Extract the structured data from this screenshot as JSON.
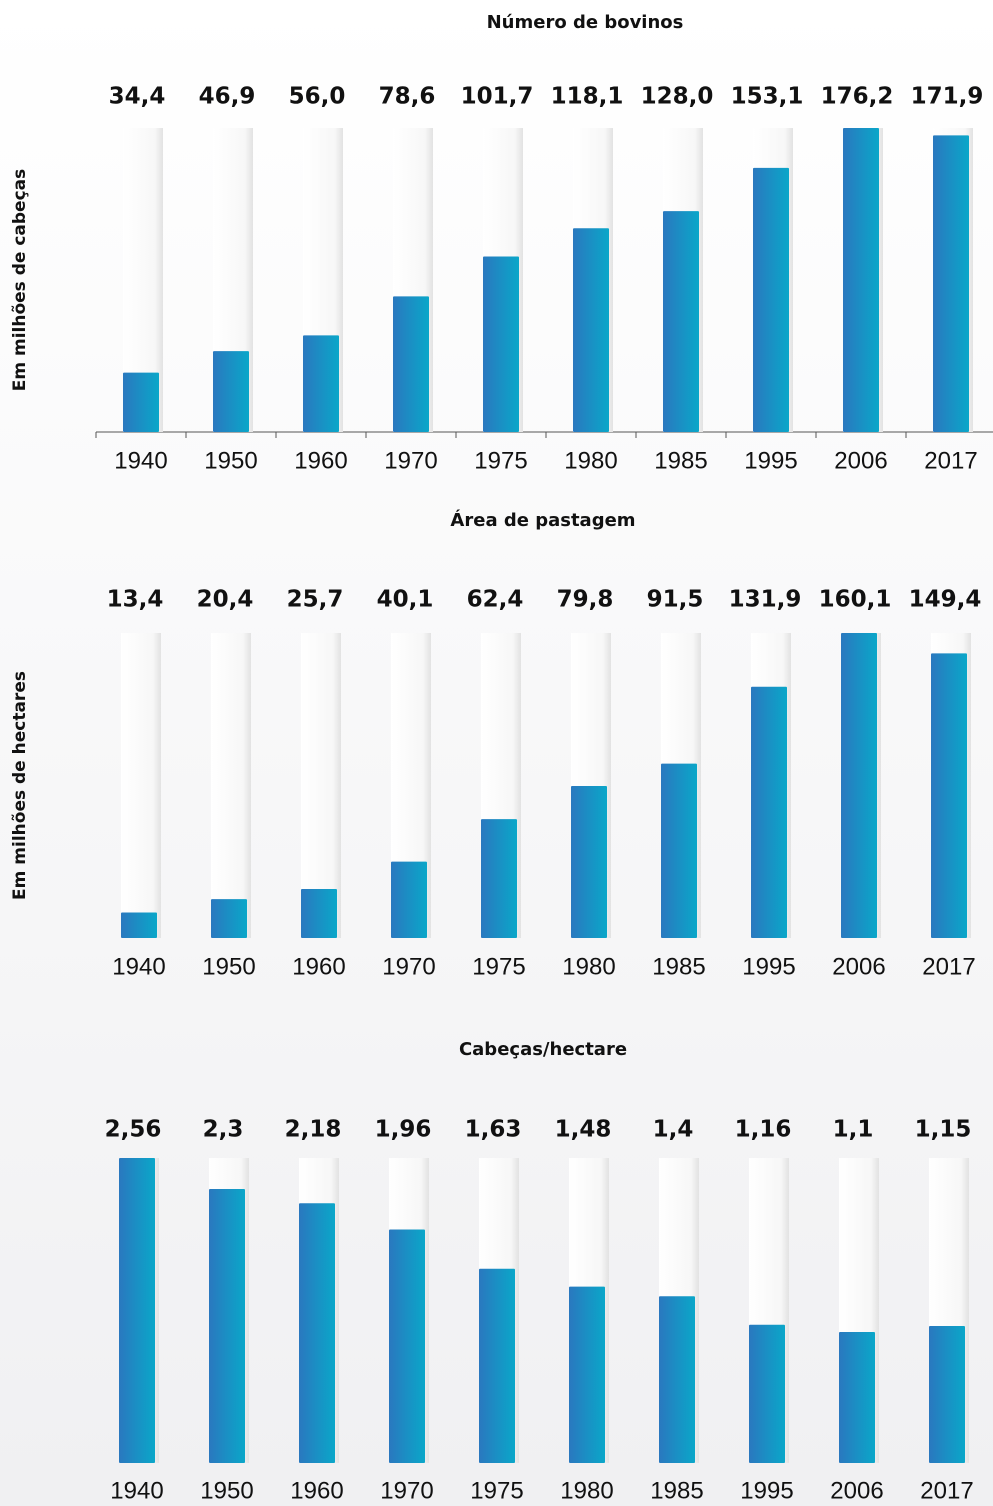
{
  "chart_data": [
    {
      "type": "bar",
      "title": "Número de bovinos",
      "y_label": "Em milhões de cabeças",
      "categories": [
        "1940",
        "1950",
        "1960",
        "1970",
        "1975",
        "1980",
        "1985",
        "1995",
        "2006",
        "2017"
      ],
      "values": [
        34.4,
        46.9,
        56.0,
        78.6,
        101.7,
        118.1,
        128.0,
        153.1,
        176.2,
        171.9
      ],
      "value_labels": [
        "34,4",
        "46,9",
        "56,0",
        "78,6",
        "101,7",
        "118,1",
        "128,0",
        "153,1",
        "176,2",
        "171,9"
      ],
      "color": "#1f86c4",
      "axis_line": true
    },
    {
      "type": "bar",
      "title": "Área de pastagem",
      "y_label": "Em milhões de hectares",
      "categories": [
        "1940",
        "1950",
        "1960",
        "1970",
        "1975",
        "1980",
        "1985",
        "1995",
        "2006",
        "2017"
      ],
      "values": [
        13.4,
        20.4,
        25.7,
        40.1,
        62.4,
        79.8,
        91.5,
        131.9,
        160.1,
        149.4
      ],
      "value_labels": [
        "13,4",
        "20,4",
        "25,7",
        "40,1",
        "62,4",
        "79,8",
        "91,5",
        "131,9",
        "160,1",
        "149,4"
      ],
      "color": "#1f86c4",
      "axis_line": false
    },
    {
      "type": "bar",
      "title": "Cabeças/hectare",
      "categories": [
        "1940",
        "1950",
        "1960",
        "1970",
        "1975",
        "1980",
        "1985",
        "1995",
        "2006",
        "2017"
      ],
      "values": [
        2.56,
        2.3,
        2.18,
        1.96,
        1.63,
        1.48,
        1.4,
        1.16,
        1.1,
        1.15
      ],
      "value_labels": [
        "2,56",
        "2,3",
        "2,18",
        "1,96",
        "1,63",
        "1,48",
        "1,4",
        "1,16",
        "1,1",
        "1,15"
      ],
      "color": "#1f86c4",
      "axis_line": false
    }
  ]
}
